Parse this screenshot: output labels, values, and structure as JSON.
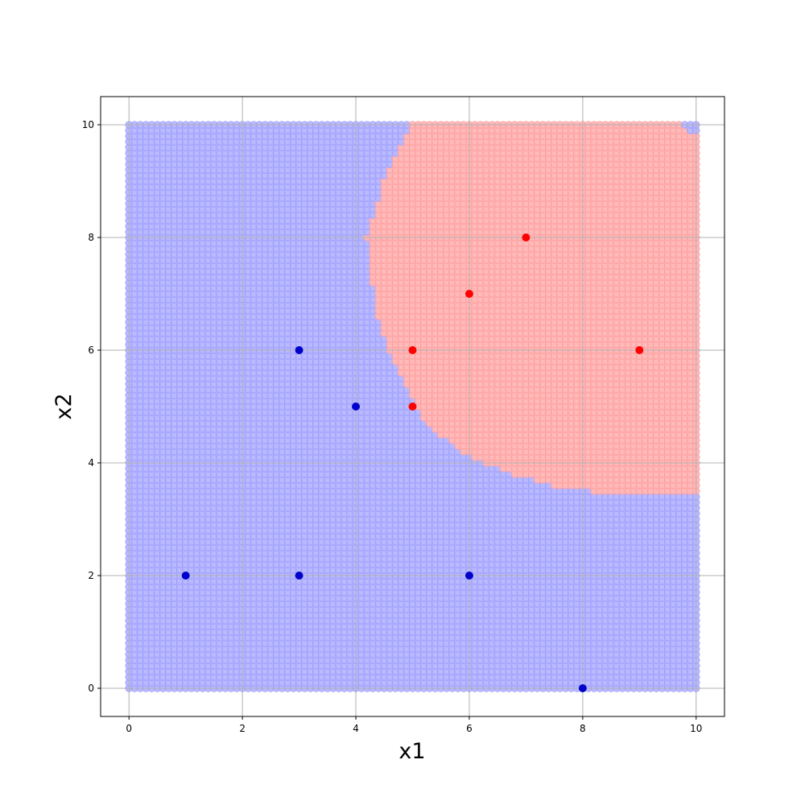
{
  "chart_data": {
    "type": "scatter",
    "title": "",
    "xlabel": "x1",
    "ylabel": "x2",
    "xlim": [
      -0.5,
      10.5
    ],
    "ylim": [
      -0.5,
      10.5
    ],
    "xticks": [
      0,
      2,
      4,
      6,
      8,
      10
    ],
    "yticks": [
      0,
      2,
      4,
      6,
      8,
      10
    ],
    "grid": true,
    "legend": "none",
    "colors": {
      "red_class": "#ff0000",
      "blue_class": "#0000cc",
      "red_region": "#ffb3b3",
      "blue_region": "#b3b3ff",
      "grid": "#b0b0b0"
    },
    "decision_grid": {
      "x_range": [
        0,
        10
      ],
      "y_range": [
        0,
        10
      ],
      "step": 0.1,
      "region_boundary": [
        {
          "x2": 10.0,
          "x1_min": 5.0,
          "x1_max": 9.7
        },
        {
          "x2": 9.8,
          "x1_min": 4.9,
          "x1_max": 10.0
        },
        {
          "x2": 9.4,
          "x1_min": 4.7,
          "x1_max": 10.0
        },
        {
          "x2": 9.0,
          "x1_min": 4.5,
          "x1_max": 10.0
        },
        {
          "x2": 8.6,
          "x1_min": 4.4,
          "x1_max": 10.0
        },
        {
          "x2": 8.0,
          "x1_min": 4.2,
          "x1_max": 10.0
        },
        {
          "x2": 7.2,
          "x1_min": 4.3,
          "x1_max": 10.0
        },
        {
          "x2": 6.6,
          "x1_min": 4.4,
          "x1_max": 10.0
        },
        {
          "x2": 6.0,
          "x1_min": 4.6,
          "x1_max": 10.0
        },
        {
          "x2": 5.6,
          "x1_min": 4.8,
          "x1_max": 10.0
        },
        {
          "x2": 5.2,
          "x1_min": 5.0,
          "x1_max": 10.0
        },
        {
          "x2": 4.8,
          "x1_min": 5.2,
          "x1_max": 10.0
        },
        {
          "x2": 4.5,
          "x1_min": 5.5,
          "x1_max": 10.0
        },
        {
          "x2": 4.2,
          "x1_min": 5.9,
          "x1_max": 10.0
        },
        {
          "x2": 4.0,
          "x1_min": 6.3,
          "x1_max": 10.0
        },
        {
          "x2": 3.8,
          "x1_min": 6.8,
          "x1_max": 10.0
        },
        {
          "x2": 3.6,
          "x1_min": 7.5,
          "x1_max": 10.0
        },
        {
          "x2": 3.5,
          "x1_min": 8.2,
          "x1_max": 10.0
        }
      ]
    },
    "series": [
      {
        "class": "red",
        "points": [
          [
            7,
            8
          ],
          [
            6,
            7
          ],
          [
            5,
            6
          ],
          [
            9,
            6
          ],
          [
            5,
            5
          ]
        ]
      },
      {
        "class": "blue",
        "points": [
          [
            3,
            6
          ],
          [
            4,
            5
          ],
          [
            1,
            2
          ],
          [
            3,
            2
          ],
          [
            6,
            2
          ],
          [
            8,
            0
          ]
        ]
      }
    ]
  }
}
